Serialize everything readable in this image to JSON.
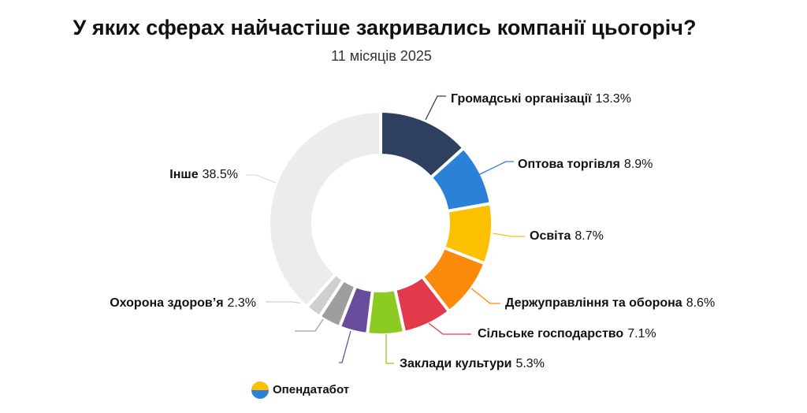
{
  "chart_data": {
    "type": "donut",
    "title": "У яких сферах найчастіше закривались компанії цьогоріч?",
    "subtitle": "11 місяців 2025",
    "categories": [
      "Громадські організації",
      "Оптова торгівля",
      "Освіта",
      "Держуправління та оборона",
      "Сільське господарство",
      "Заклади культури",
      null,
      null,
      "Охорона здоров’я",
      "Інше"
    ],
    "values": [
      13.3,
      8.9,
      8.7,
      8.6,
      7.1,
      5.3,
      4.1,
      3.2,
      2.3,
      38.5
    ],
    "value_labels": [
      "13.3%",
      "8.9%",
      "8.7%",
      "8.6%",
      "7.1%",
      "5.3%",
      null,
      null,
      "2.3%",
      "38.5%"
    ],
    "colors": [
      "#2e3f5f",
      "#2b80d8",
      "#fcc000",
      "#fb8a0a",
      "#e23a4a",
      "#8ccc22",
      "#6a4c9c",
      "#9e9e9e",
      "#cfcfcf",
      "#ececec"
    ],
    "source": "Опендатабот"
  }
}
